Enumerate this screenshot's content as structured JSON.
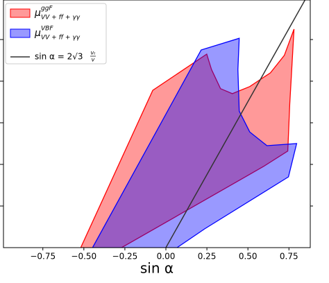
{
  "chart_data": {
    "type": "area",
    "xlabel": "sin α",
    "xlim": [
      -0.99,
      0.88
    ],
    "ylim": [
      0,
      5.95
    ],
    "xticks": [
      {
        "value": -0.75,
        "label": "−0.75"
      },
      {
        "value": -0.5,
        "label": "−0.50"
      },
      {
        "value": -0.25,
        "label": "−0.25"
      },
      {
        "value": 0,
        "label": "0.00"
      },
      {
        "value": 0.25,
        "label": "0.25"
      },
      {
        "value": 0.5,
        "label": "0.50"
      },
      {
        "value": 0.75,
        "label": "0.75"
      }
    ],
    "yticks": [
      1,
      2,
      3,
      4,
      5
    ],
    "legend": "upper left",
    "series": [
      {
        "type": "polygon",
        "name": "μ",
        "name_sup": "ggF",
        "name_sub": "VV + ff + γγ",
        "color": "#ff0000",
        "x": [
          -0.519,
          -0.08,
          0.249,
          0.278,
          0.333,
          0.405,
          0.511,
          0.637,
          0.722,
          0.781,
          0.755,
          0.743,
          0.595,
          -0.27
        ],
        "values": [
          0,
          3.78,
          4.65,
          4.28,
          3.82,
          3.7,
          3.87,
          4.2,
          4.62,
          5.25,
          3.45,
          2.32,
          1.95,
          0
        ]
      },
      {
        "type": "polygon",
        "name": "μ",
        "name_sup": "VBF",
        "name_sub": "VV + ff + γγ",
        "color": "#0000ff",
        "x": [
          -0.447,
          0.215,
          0.447,
          0.439,
          0.447,
          0.511,
          0.616,
          0.797,
          0.747,
          0.236,
          0.068
        ],
        "values": [
          0,
          4.75,
          5.03,
          4.28,
          3.28,
          2.78,
          2.45,
          2.5,
          1.7,
          0.45,
          0
        ]
      },
      {
        "type": "line",
        "name": "sin α = 2√3",
        "name_num": "vₜ",
        "name_den": "v",
        "color": "#333333",
        "x": [
          0,
          0.848
        ],
        "values": [
          0,
          5.95
        ]
      }
    ]
  }
}
